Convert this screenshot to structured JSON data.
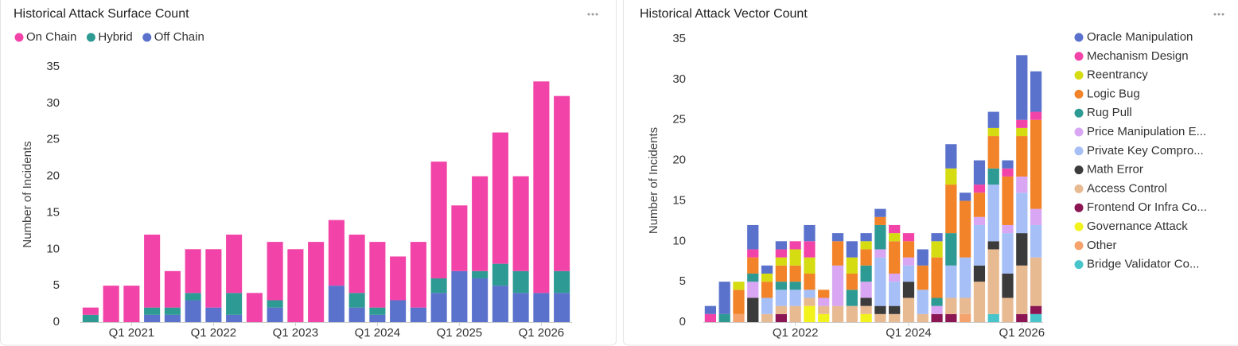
{
  "chart_data": [
    {
      "type": "bar",
      "stacked": true,
      "title": "Historical Attack Surface Count",
      "y_label": "Number of Incidents",
      "legend": "top",
      "grid": false,
      "categories": [
        null,
        null,
        "Q1 2021",
        null,
        null,
        null,
        "Q1 2022",
        null,
        null,
        null,
        "Q1 2023",
        null,
        null,
        null,
        "Q1 2024",
        null,
        null,
        null,
        "Q1 2025",
        null,
        null,
        null,
        "Q1 2026",
        null
      ],
      "ylim": [
        0,
        35
      ],
      "yticks": [
        0,
        5,
        10,
        15,
        20,
        25,
        30,
        35
      ],
      "series": [
        {
          "name": "On Chain",
          "color": "#f244a8",
          "values": [
            1,
            5,
            5,
            10,
            5,
            6,
            8,
            8,
            4,
            8,
            10,
            11,
            9,
            8,
            9,
            6,
            9,
            16,
            9,
            13,
            18,
            13,
            29,
            24
          ]
        },
        {
          "name": "Hybrid",
          "color": "#2e9a94",
          "values": [
            1,
            0,
            0,
            1,
            1,
            1,
            0,
            3,
            0,
            1,
            0,
            0,
            0,
            2,
            1,
            0,
            0,
            2,
            0,
            1,
            3,
            3,
            0,
            3
          ]
        },
        {
          "name": "Off Chain",
          "color": "#5a72cc",
          "values": [
            0,
            0,
            0,
            1,
            1,
            3,
            2,
            1,
            0,
            2,
            0,
            0,
            5,
            2,
            1,
            3,
            2,
            4,
            7,
            6,
            5,
            4,
            4,
            4
          ]
        }
      ]
    },
    {
      "type": "bar",
      "stacked": true,
      "title": "Historical Attack Vector Count",
      "y_label": "Number of Incidents",
      "legend": "right",
      "grid": false,
      "categories": [
        null,
        null,
        null,
        null,
        null,
        null,
        "Q1 2022",
        null,
        null,
        null,
        null,
        null,
        null,
        null,
        "Q1 2024",
        null,
        null,
        null,
        null,
        null,
        null,
        null,
        "Q1 2026",
        null
      ],
      "ylim": [
        0,
        35
      ],
      "yticks": [
        0,
        5,
        10,
        15,
        20,
        25,
        30,
        35
      ],
      "series": [
        {
          "name": "Oracle Manipulation",
          "color": "#5a72cc",
          "values": [
            1,
            4,
            0,
            3,
            1,
            1,
            0,
            2,
            0,
            1,
            2,
            1,
            1,
            0,
            0,
            2,
            1,
            3,
            1,
            3,
            2,
            1,
            8,
            5
          ]
        },
        {
          "name": "Mechanism Design",
          "color": "#f244a8",
          "values": [
            1,
            0,
            0,
            1,
            0,
            1,
            1,
            2,
            0,
            0,
            0,
            0,
            0,
            1,
            1,
            0,
            0,
            0,
            0,
            1,
            0,
            1,
            1,
            1
          ]
        },
        {
          "name": "Reentrancy",
          "color": "#d6dc12",
          "values": [
            0,
            0,
            1,
            0,
            1,
            1,
            2,
            2,
            0,
            0,
            2,
            1,
            0,
            1,
            0,
            0,
            2,
            2,
            0,
            0,
            1,
            0,
            1,
            0
          ]
        },
        {
          "name": "Logic Bug",
          "color": "#f28328",
          "values": [
            0,
            0,
            3,
            2,
            2,
            2,
            2,
            2,
            1,
            3,
            2,
            2,
            1,
            4,
            2,
            3,
            5,
            6,
            7,
            3,
            4,
            6,
            5,
            11
          ]
        },
        {
          "name": "Rug Pull",
          "color": "#2e9a94",
          "values": [
            0,
            1,
            0,
            1,
            0,
            1,
            1,
            0,
            0,
            0,
            2,
            2,
            3,
            0,
            0,
            0,
            1,
            4,
            0,
            0,
            2,
            0,
            0,
            0
          ]
        },
        {
          "name": "Price Manipulation E...",
          "color": "#d8a6f2",
          "values": [
            0,
            0,
            0,
            2,
            0,
            0,
            0,
            0,
            1,
            5,
            0,
            2,
            1,
            1,
            1,
            0,
            1,
            0,
            0,
            1,
            0,
            1,
            2,
            2
          ]
        },
        {
          "name": "Private Key Compro...",
          "color": "#a6bff7",
          "values": [
            0,
            0,
            0,
            0,
            2,
            2,
            2,
            1,
            0,
            0,
            0,
            0,
            6,
            3,
            2,
            3,
            0,
            4,
            5,
            5,
            7,
            5,
            5,
            4
          ]
        },
        {
          "name": "Math Error",
          "color": "#3b3b3b",
          "values": [
            0,
            0,
            0,
            3,
            0,
            0,
            0,
            0,
            0,
            0,
            0,
            1,
            1,
            1,
            2,
            0,
            0,
            0,
            0,
            2,
            1,
            3,
            4,
            0
          ]
        },
        {
          "name": "Access Control",
          "color": "#e8ba92",
          "values": [
            0,
            0,
            0,
            0,
            1,
            1,
            2,
            1,
            1,
            2,
            2,
            1,
            1,
            1,
            3,
            1,
            0,
            2,
            2,
            5,
            8,
            3,
            6,
            6
          ]
        },
        {
          "name": "Frontend Or Infra Co...",
          "color": "#8c1654",
          "values": [
            0,
            0,
            0,
            0,
            0,
            1,
            0,
            0,
            0,
            0,
            0,
            0,
            0,
            0,
            0,
            0,
            1,
            1,
            0,
            0,
            0,
            0,
            1,
            1
          ]
        },
        {
          "name": "Governance Attack",
          "color": "#f2f21c",
          "values": [
            0,
            0,
            0,
            0,
            0,
            0,
            0,
            2,
            1,
            0,
            0,
            1,
            0,
            0,
            0,
            0,
            0,
            0,
            0,
            0,
            0,
            0,
            0,
            0
          ]
        },
        {
          "name": "Other",
          "color": "#f5a26c",
          "values": [
            0,
            0,
            1,
            0,
            0,
            0,
            0,
            0,
            0,
            0,
            0,
            0,
            0,
            0,
            0,
            0,
            0,
            0,
            1,
            0,
            0,
            0,
            0,
            0
          ]
        },
        {
          "name": "Bridge Validator Co...",
          "color": "#48c4cb",
          "values": [
            0,
            0,
            0,
            0,
            0,
            0,
            0,
            0,
            0,
            0,
            0,
            0,
            0,
            0,
            0,
            0,
            0,
            0,
            0,
            0,
            1,
            0,
            0,
            1
          ]
        }
      ]
    }
  ]
}
